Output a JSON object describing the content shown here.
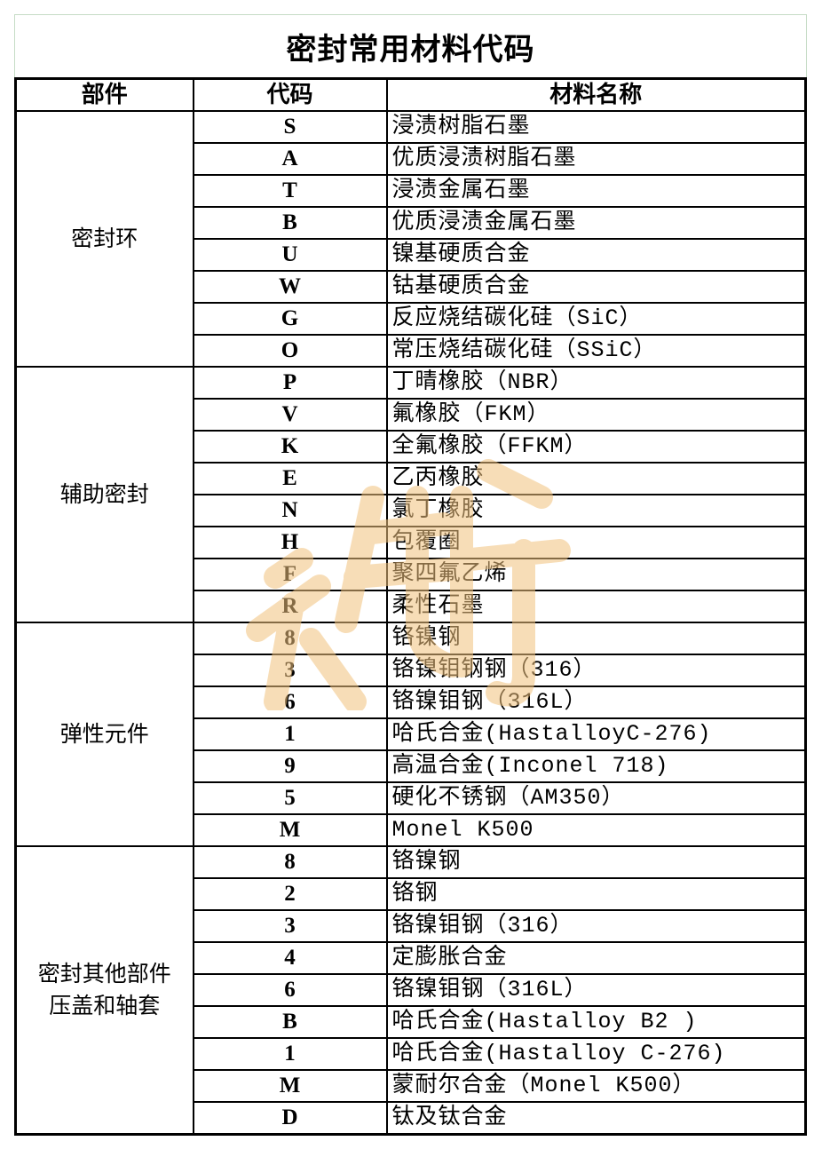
{
  "title": "密封常用材料代码",
  "headers": {
    "part": "部件",
    "code": "代码",
    "name": "材料名称"
  },
  "groups": [
    {
      "part": "密封环",
      "rows": [
        {
          "code": "S",
          "name": "浸渍树脂石墨"
        },
        {
          "code": "A",
          "name": "优质浸渍树脂石墨"
        },
        {
          "code": "T",
          "name": "浸渍金属石墨"
        },
        {
          "code": "B",
          "name": "优质浸渍金属石墨"
        },
        {
          "code": "U",
          "name": "镍基硬质合金"
        },
        {
          "code": "W",
          "name": "钴基硬质合金"
        },
        {
          "code": "G",
          "name": "反应烧结碳化硅（SiC）"
        },
        {
          "code": "O",
          "name": "常压烧结碳化硅（SSiC）"
        }
      ]
    },
    {
      "part": "辅助密封",
      "rows": [
        {
          "code": "P",
          "name": "丁晴橡胶（NBR）"
        },
        {
          "code": "V",
          "name": "氟橡胶（FKM）"
        },
        {
          "code": "K",
          "name": "全氟橡胶（FFKM）"
        },
        {
          "code": "E",
          "name": "乙丙橡胶"
        },
        {
          "code": "N",
          "name": "氯丁橡胶"
        },
        {
          "code": "H",
          "name": "包覆圈"
        },
        {
          "code": "F",
          "name": "聚四氟乙烯"
        },
        {
          "code": "R",
          "name": "柔性石墨"
        }
      ]
    },
    {
      "part": "弹性元件",
      "rows": [
        {
          "code": "8",
          "name": "铬镍钢"
        },
        {
          "code": "3",
          "name": "铬镍钼钢钢（316）"
        },
        {
          "code": "6",
          "name": "铬镍钼钢（316L）"
        },
        {
          "code": "1",
          "name": "哈氏合金(HastalloyC-276)"
        },
        {
          "code": "9",
          "name": "高温合金(Inconel 718)"
        },
        {
          "code": "5",
          "name": "硬化不锈钢（AM350）"
        },
        {
          "code": "M",
          "name": "Monel K500"
        }
      ]
    },
    {
      "part": "密封其他部件\n压盖和轴套",
      "rows": [
        {
          "code": "8",
          "name": "铬镍钢"
        },
        {
          "code": "2",
          "name": "铬钢"
        },
        {
          "code": "3",
          "name": "铬镍钼钢（316）"
        },
        {
          "code": "4",
          "name": "定膨胀合金"
        },
        {
          "code": "6",
          "name": "铬镍钼钢（316L）"
        },
        {
          "code": "B",
          "name": "哈氏合金(Hastalloy B2 )"
        },
        {
          "code": "1",
          "name": "哈氏合金(Hastalloy C-276)"
        },
        {
          "code": "M",
          "name": "蒙耐尔合金（Monel K500）"
        },
        {
          "code": "D",
          "name": "钛及钛合金"
        }
      ]
    }
  ],
  "watermark_color": "#f2c37e"
}
